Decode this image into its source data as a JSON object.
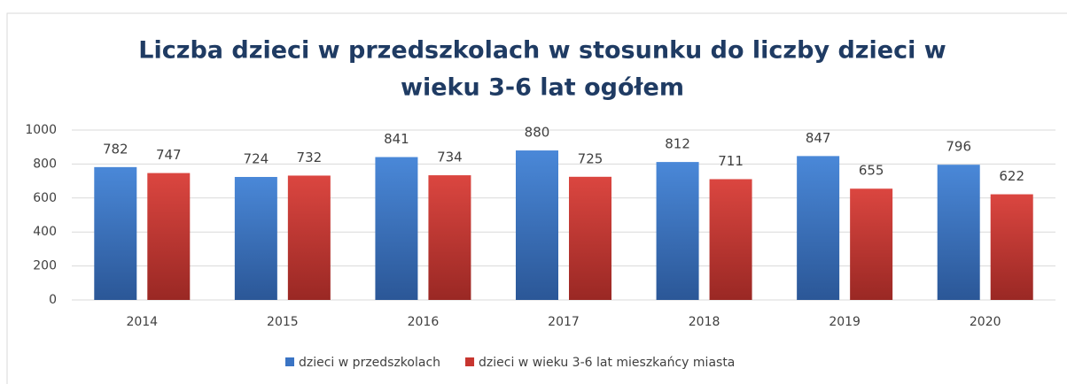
{
  "chart_data": {
    "type": "bar",
    "title": [
      "Liczba dzieci w przedszkolach  w stosunku do liczby dzieci w",
      "wieku 3-6 lat ogółem"
    ],
    "categories": [
      "2014",
      "2015",
      "2016",
      "2017",
      "2018",
      "2019",
      "2020"
    ],
    "series": [
      {
        "name": "dzieci w przedszkolach",
        "color": "#3a74c4",
        "values": [
          782,
          724,
          841,
          880,
          812,
          847,
          796
        ]
      },
      {
        "name": "dzieci w wieku 3-6 lat mieszkańcy miasta",
        "color": "#c7352f",
        "values": [
          747,
          732,
          734,
          725,
          711,
          655,
          622
        ]
      }
    ],
    "ylim": [
      0,
      1000
    ],
    "yticks": [
      0,
      200,
      400,
      600,
      800,
      1000
    ],
    "grid": true,
    "legend": "bottom"
  }
}
